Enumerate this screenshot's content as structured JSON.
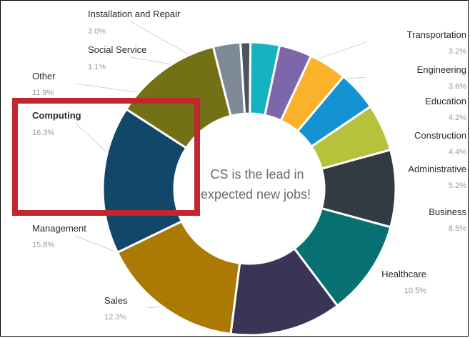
{
  "chart_data": {
    "type": "pie",
    "variant": "donut",
    "title": "",
    "center_text": [
      "CS is the lead in",
      "expected new jobs!"
    ],
    "slices": [
      {
        "label": "Social Service",
        "value": 1.1,
        "display": "1.1%",
        "color": "#4a5560"
      },
      {
        "label": "Transportation",
        "value": 3.2,
        "display": "3.2%",
        "color": "#15b3c0"
      },
      {
        "label": "Engineering",
        "value": 3.6,
        "display": "3.6%",
        "color": "#7d67aa"
      },
      {
        "label": "Education",
        "value": 4.2,
        "display": "4.2%",
        "color": "#fbb12a"
      },
      {
        "label": "Construction",
        "value": 4.4,
        "display": "4.4%",
        "color": "#1393d2"
      },
      {
        "label": "Administrative",
        "value": 5.2,
        "display": "5.2%",
        "color": "#b6c13c"
      },
      {
        "label": "Business",
        "value": 8.5,
        "display": "8.5%",
        "color": "#323a42"
      },
      {
        "label": "Healthcare",
        "value": 10.5,
        "display": "10.5%",
        "color": "#077073"
      },
      {
        "label": "Sales",
        "value": 12.3,
        "display": "12.3%",
        "color": "#3a3556"
      },
      {
        "label": "Management",
        "value": 15.8,
        "display": "15.8%",
        "color": "#aa7a05"
      },
      {
        "label": "Computing",
        "value": 16.3,
        "display": "16.3%",
        "color": "#11486a",
        "highlighted": true
      },
      {
        "label": "Other",
        "value": 11.9,
        "display": "11.9%",
        "color": "#737016"
      },
      {
        "label": "Installation and Repair",
        "value": 3.0,
        "display": "3.0%",
        "color": "#7d8a96"
      }
    ],
    "highlight_box_color": "#c1272d",
    "legend": "labels around ring"
  }
}
